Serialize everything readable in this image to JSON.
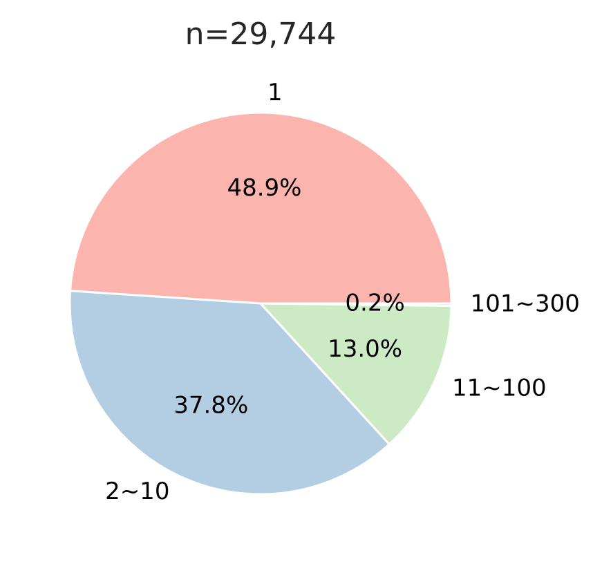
{
  "chart_data": {
    "type": "pie",
    "title": "n=29,744",
    "categories": [
      "1",
      "2~10",
      "11~100",
      "101~300"
    ],
    "values": [
      48.9,
      37.8,
      13.0,
      0.2
    ],
    "value_labels": [
      "48.9%",
      "37.8%",
      "13.0%",
      "0.2%"
    ],
    "colors": [
      "#fbb4ae",
      "#b3cde3",
      "#ccebc5",
      "#decbe4"
    ]
  }
}
